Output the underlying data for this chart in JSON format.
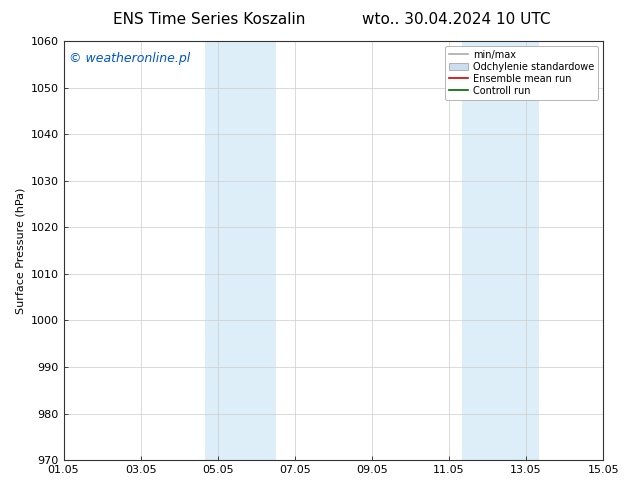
{
  "title_left": "ENS Time Series Koszalin",
  "title_right": "wto.. 30.04.2024 10 UTC",
  "ylabel": "Surface Pressure (hPa)",
  "ylim": [
    970,
    1060
  ],
  "yticks": [
    970,
    980,
    990,
    1000,
    1010,
    1020,
    1030,
    1040,
    1050,
    1060
  ],
  "xlim": [
    0,
    14
  ],
  "xtick_labels": [
    "01.05",
    "03.05",
    "05.05",
    "07.05",
    "09.05",
    "11.05",
    "13.05",
    "15.05"
  ],
  "xtick_positions": [
    0,
    2,
    4,
    6,
    8,
    10,
    12,
    14
  ],
  "shaded_bands": [
    {
      "x_start": 3.67,
      "x_end": 5.5,
      "color": "#ddeef8"
    },
    {
      "x_start": 10.33,
      "x_end": 12.33,
      "color": "#ddeef8"
    }
  ],
  "watermark_text": "© weatheronline.pl",
  "watermark_color": "#0055cc",
  "watermark_fontsize": 9,
  "legend_entries": [
    {
      "label": "min/max",
      "color": "#aaaaaa",
      "style": "line"
    },
    {
      "label": "Odchylenie standardowe",
      "color": "#ccddf0",
      "style": "box"
    },
    {
      "label": "Ensemble mean run",
      "color": "#cc0000",
      "style": "line"
    },
    {
      "label": "Controll run",
      "color": "#006600",
      "style": "line"
    }
  ],
  "background_color": "#ffffff",
  "grid_color": "#cccccc",
  "title_fontsize": 11,
  "axis_label_fontsize": 8,
  "tick_fontsize": 8
}
